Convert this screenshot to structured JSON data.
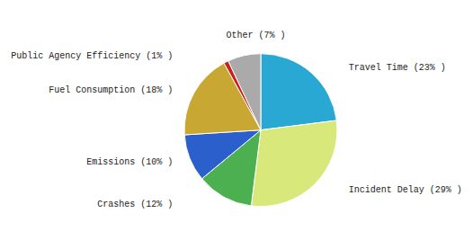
{
  "chart_data": {
    "type": "pie",
    "categories": [
      "Travel Time (23% )",
      "Incident Delay (29% )",
      "Crashes (12% )",
      "Emissions (10% )",
      "Fuel Consumption (18% )",
      "Public Agency Efficiency (1% )",
      "Other (7% )"
    ],
    "values": [
      23,
      29,
      12,
      10,
      18,
      1,
      7
    ],
    "colors": [
      "#29A8D4",
      "#D8E87A",
      "#4CAF50",
      "#2B5FCC",
      "#C8A832",
      "#CC2020",
      "#AAAAAA"
    ]
  }
}
